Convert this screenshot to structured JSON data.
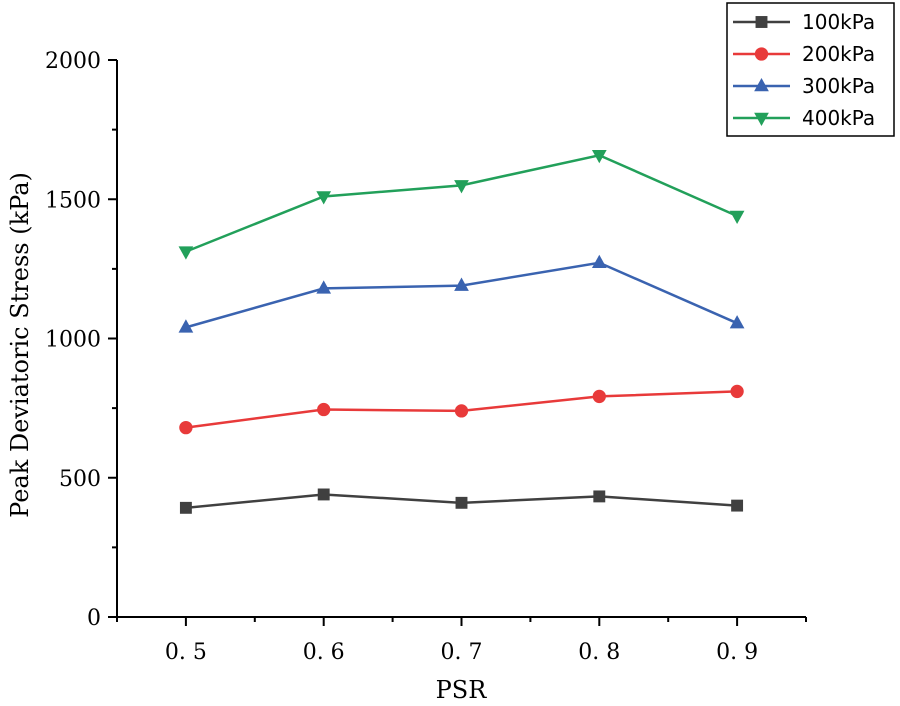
{
  "chart_data": {
    "type": "line",
    "title": "",
    "xlabel": "PSR",
    "ylabel": "Peak Deviatoric Stress (kPa)",
    "x": [
      0.5,
      0.6,
      0.7,
      0.8,
      0.9
    ],
    "x_tick_labels": [
      "0. 5",
      "0. 6",
      "0. 7",
      "0. 8",
      "0. 9"
    ],
    "xlim": [
      0.45,
      0.95
    ],
    "ylim": [
      0,
      2000
    ],
    "y_ticks": [
      0,
      500,
      1000,
      1500,
      2000
    ],
    "y_tick_labels": [
      "0",
      "500",
      "1000",
      "1500",
      "2000"
    ],
    "legend_position": "top-right",
    "grid": false,
    "series": [
      {
        "name": "100kPa",
        "color": "#404040",
        "marker": "square",
        "values": [
          392,
          440,
          410,
          433,
          400
        ]
      },
      {
        "name": "200kPa",
        "color": "#e83a3a",
        "marker": "circle",
        "values": [
          680,
          745,
          740,
          792,
          810
        ]
      },
      {
        "name": "300kPa",
        "color": "#3a63b0",
        "marker": "triangle-up",
        "values": [
          1040,
          1180,
          1190,
          1272,
          1055
        ]
      },
      {
        "name": "400kPa",
        "color": "#22a05a",
        "marker": "triangle-down",
        "values": [
          1312,
          1510,
          1550,
          1658,
          1440
        ]
      }
    ]
  }
}
